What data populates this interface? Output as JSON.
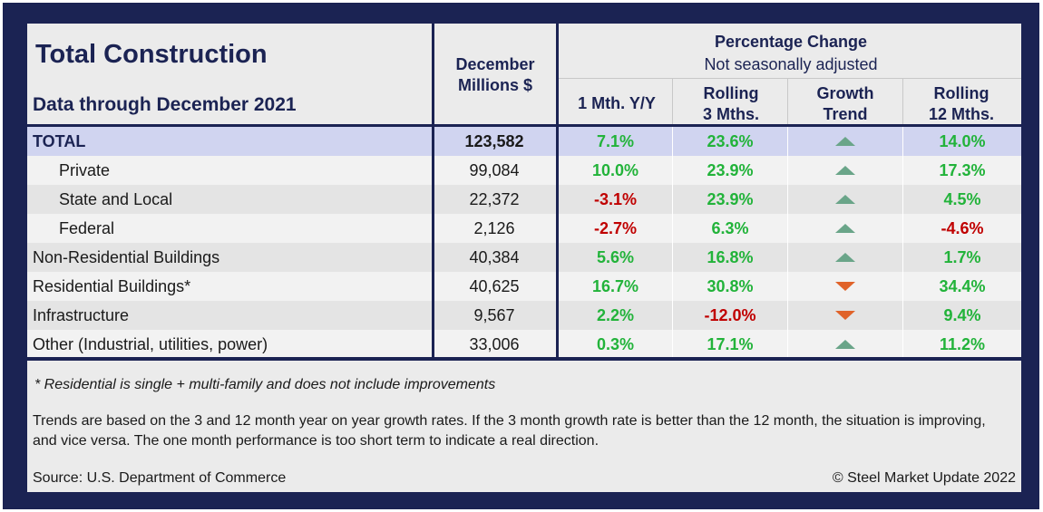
{
  "header": {
    "title": "Total Construction",
    "subtitle": "Data through December 2021",
    "value_col": [
      "December",
      "Millions $"
    ],
    "pct_title": "Percentage Change",
    "pct_subtitle": "Not seasonally adjusted",
    "cols": [
      [
        "1 Mth. Y/Y"
      ],
      [
        "Rolling",
        "3 Mths."
      ],
      [
        "Growth",
        "Trend"
      ],
      [
        "Rolling",
        "12 Mths."
      ]
    ]
  },
  "rows": [
    {
      "label": "TOTAL",
      "value": "123,582",
      "m1": "7.1%",
      "m3": "23.6%",
      "trend": "up",
      "m12": "14.0%"
    },
    {
      "label": "Private",
      "value": "99,084",
      "m1": "10.0%",
      "m3": "23.9%",
      "trend": "up",
      "m12": "17.3%"
    },
    {
      "label": "State and Local",
      "value": "22,372",
      "m1": "-3.1%",
      "m3": "23.9%",
      "trend": "up",
      "m12": "4.5%"
    },
    {
      "label": "Federal",
      "value": "2,126",
      "m1": "-2.7%",
      "m3": "6.3%",
      "trend": "up",
      "m12": "-4.6%"
    },
    {
      "label": "Non-Residential Buildings",
      "value": "40,384",
      "m1": "5.6%",
      "m3": "16.8%",
      "trend": "up",
      "m12": "1.7%"
    },
    {
      "label": "Residential Buildings*",
      "value": "40,625",
      "m1": "16.7%",
      "m3": "30.8%",
      "trend": "down",
      "m12": "34.4%"
    },
    {
      "label": "Infrastructure",
      "value": "9,567",
      "m1": "2.2%",
      "m3": "-12.0%",
      "trend": "down",
      "m12": "9.4%"
    },
    {
      "label": "Other (Industrial, utilities, power)",
      "value": "33,006",
      "m1": "0.3%",
      "m3": "17.1%",
      "trend": "up",
      "m12": "11.2%"
    }
  ],
  "footer": {
    "note": "* Residential is single + multi-family and does not include improvements",
    "explanation": "Trends are based on the 3 and 12 month year on year growth rates. If the 3 month growth rate is better than the 12 month, the situation is improving, and vice versa. The one month performance is too short term to indicate a real direction.",
    "source": "Source: U.S. Department of Commerce",
    "copyright": "© Steel Market Update 2022"
  },
  "colors": {
    "navy": "#1b2353",
    "positive": "#22b33a",
    "negative": "#c00000",
    "trend_up": "#6aa589",
    "trend_down": "#e0632a",
    "total_row": "#d0d4f0",
    "row_alt": "#f2f2f2",
    "row_base": "#e4e4e4"
  },
  "icons": {
    "up": "up-triangle-icon",
    "down": "down-triangle-icon"
  }
}
